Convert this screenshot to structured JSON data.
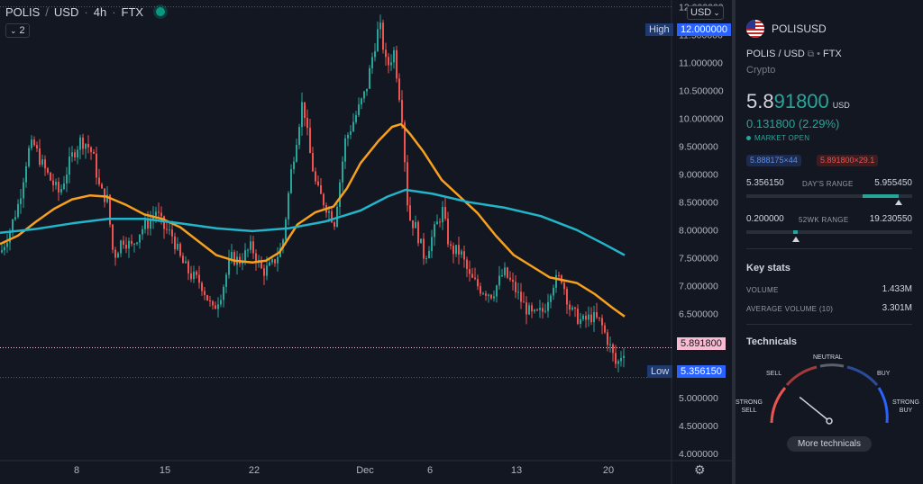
{
  "header": {
    "symbol": "POLIS",
    "quote": "USD",
    "interval": "4h",
    "exchange": "FTX",
    "indicator_count": "2",
    "currency_button": "USD"
  },
  "tags": {
    "high_label": "High",
    "high_value": "12.000000",
    "low_label": "Low",
    "low_value": "5.356150",
    "current_price": "5.891800"
  },
  "chart_data": {
    "type": "candlestick",
    "price_axis_ticks": [
      "12.000000",
      "11.500000",
      "11.000000",
      "10.500000",
      "10.000000",
      "9.500000",
      "9.000000",
      "8.500000",
      "8.000000",
      "7.500000",
      "7.000000",
      "6.500000",
      "6.000000",
      "5.500000",
      "5.000000",
      "4.500000",
      "4.000000"
    ],
    "time_axis_ticks": [
      "8",
      "15",
      "22",
      "Dec",
      "6",
      "13",
      "20"
    ],
    "ylim": [
      3.9,
      12.05
    ],
    "series": [
      {
        "name": "",
        "color": "#f7a01d",
        "kind": "fast moving average",
        "points": [
          [
            0,
            7.75
          ],
          [
            20,
            7.9
          ],
          [
            40,
            8.15
          ],
          [
            60,
            8.38
          ],
          [
            80,
            8.55
          ],
          [
            100,
            8.62
          ],
          [
            118,
            8.6
          ],
          [
            140,
            8.45
          ],
          [
            160,
            8.28
          ],
          [
            180,
            8.2
          ],
          [
            200,
            8.05
          ],
          [
            220,
            7.8
          ],
          [
            240,
            7.55
          ],
          [
            260,
            7.45
          ],
          [
            280,
            7.42
          ],
          [
            295,
            7.45
          ],
          [
            310,
            7.6
          ],
          [
            330,
            8.1
          ],
          [
            350,
            8.32
          ],
          [
            370,
            8.42
          ],
          [
            385,
            8.75
          ],
          [
            400,
            9.2
          ],
          [
            420,
            9.6
          ],
          [
            435,
            9.85
          ],
          [
            445,
            9.9
          ],
          [
            455,
            9.72
          ],
          [
            470,
            9.4
          ],
          [
            490,
            8.9
          ],
          [
            510,
            8.6
          ],
          [
            530,
            8.3
          ],
          [
            550,
            7.9
          ],
          [
            570,
            7.55
          ],
          [
            590,
            7.35
          ],
          [
            610,
            7.15
          ],
          [
            625,
            7.1
          ],
          [
            640,
            7.05
          ],
          [
            660,
            6.85
          ],
          [
            680,
            6.6
          ],
          [
            693,
            6.45
          ]
        ]
      },
      {
        "name": "",
        "color": "#22b5c9",
        "kind": "slow moving average",
        "points": [
          [
            0,
            7.95
          ],
          [
            40,
            8.02
          ],
          [
            80,
            8.12
          ],
          [
            120,
            8.2
          ],
          [
            160,
            8.2
          ],
          [
            200,
            8.12
          ],
          [
            240,
            8.03
          ],
          [
            280,
            7.98
          ],
          [
            320,
            8.03
          ],
          [
            360,
            8.15
          ],
          [
            400,
            8.35
          ],
          [
            430,
            8.6
          ],
          [
            450,
            8.72
          ],
          [
            480,
            8.65
          ],
          [
            520,
            8.5
          ],
          [
            560,
            8.4
          ],
          [
            600,
            8.25
          ],
          [
            640,
            8.0
          ],
          [
            670,
            7.75
          ],
          [
            693,
            7.55
          ]
        ]
      },
      {
        "name": "",
        "color": "#26a69a",
        "kind": "price candles (close path)",
        "points": [
          [
            0,
            7.6
          ],
          [
            10,
            8.0
          ],
          [
            20,
            8.5
          ],
          [
            30,
            9.4
          ],
          [
            36,
            9.55
          ],
          [
            45,
            9.2
          ],
          [
            55,
            8.9
          ],
          [
            65,
            8.65
          ],
          [
            78,
            9.3
          ],
          [
            88,
            9.6
          ],
          [
            95,
            9.55
          ],
          [
            102,
            9.35
          ],
          [
            110,
            8.7
          ],
          [
            118,
            8.55
          ],
          [
            125,
            7.5
          ],
          [
            135,
            7.85
          ],
          [
            145,
            7.7
          ],
          [
            155,
            8.0
          ],
          [
            165,
            8.15
          ],
          [
            172,
            8.35
          ],
          [
            180,
            8.05
          ],
          [
            190,
            7.9
          ],
          [
            200,
            7.45
          ],
          [
            210,
            7.2
          ],
          [
            222,
            7.05
          ],
          [
            235,
            6.55
          ],
          [
            245,
            6.9
          ],
          [
            255,
            7.5
          ],
          [
            265,
            7.45
          ],
          [
            278,
            7.7
          ],
          [
            290,
            7.25
          ],
          [
            300,
            7.35
          ],
          [
            312,
            7.7
          ],
          [
            322,
            9.05
          ],
          [
            335,
            10.35
          ],
          [
            342,
            9.45
          ],
          [
            350,
            8.75
          ],
          [
            360,
            8.45
          ],
          [
            370,
            8.15
          ],
          [
            382,
            9.6
          ],
          [
            395,
            10.1
          ],
          [
            405,
            10.5
          ],
          [
            412,
            11.1
          ],
          [
            420,
            11.7
          ],
          [
            428,
            10.9
          ],
          [
            436,
            11.2
          ],
          [
            445,
            10.05
          ],
          [
            452,
            8.25
          ],
          [
            460,
            8.05
          ],
          [
            470,
            7.5
          ],
          [
            480,
            7.95
          ],
          [
            490,
            8.35
          ],
          [
            498,
            7.65
          ],
          [
            510,
            7.6
          ],
          [
            520,
            7.15
          ],
          [
            532,
            6.95
          ],
          [
            545,
            6.85
          ],
          [
            558,
            7.25
          ],
          [
            570,
            6.95
          ],
          [
            580,
            6.65
          ],
          [
            590,
            6.45
          ],
          [
            602,
            6.55
          ],
          [
            612,
            7.05
          ],
          [
            622,
            7.15
          ],
          [
            632,
            6.55
          ],
          [
            645,
            6.35
          ],
          [
            655,
            6.45
          ],
          [
            665,
            6.35
          ],
          [
            675,
            5.95
          ],
          [
            683,
            5.55
          ],
          [
            689,
            5.8
          ],
          [
            693,
            5.89
          ]
        ]
      }
    ]
  },
  "panel": {
    "symbol_title": "POLISUSD",
    "sub_line": "POLIS / USD",
    "exchange_sep": "•",
    "exchange": "FTX",
    "category": "Crypto",
    "price_prefix": "5.8",
    "price_rest": "91800",
    "price_currency": "USD",
    "change": "0.131800 (2.29%)",
    "market_status": "MARKET OPEN",
    "bid": "5.888175×44",
    "ask": "5.891800×29.1",
    "day_low": "5.356150",
    "day_title": "DAY'S RANGE",
    "day_high": "5.955450",
    "day_position": 0.92,
    "wk_low": "0.200000",
    "wk_title": "52WK RANGE",
    "wk_high": "19.230550",
    "wk_position": 0.3,
    "key_stats_title": "Key stats",
    "volume_label": "VOLUME",
    "volume_value": "1.433M",
    "avg_volume_label": "AVERAGE VOLUME (10)",
    "avg_volume_value": "3.301M",
    "technicals_title": "Technicals",
    "gauge": {
      "neutral": "NEUTRAL",
      "sell": "SELL",
      "buy": "BUY",
      "strong_sell_1": "STRONG",
      "strong_sell_2": "SELL",
      "strong_buy_1": "STRONG",
      "strong_buy_2": "BUY",
      "needle_value": 0.2
    },
    "more_technicals": "More technicals"
  },
  "colors": {
    "background": "#131722",
    "up": "#26a69a",
    "down": "#ef5350",
    "ma_fast": "#f7a01d",
    "ma_slow": "#22b5c9",
    "tag_blue": "#1e3a6e",
    "current_tag": "#f8bbd0"
  }
}
